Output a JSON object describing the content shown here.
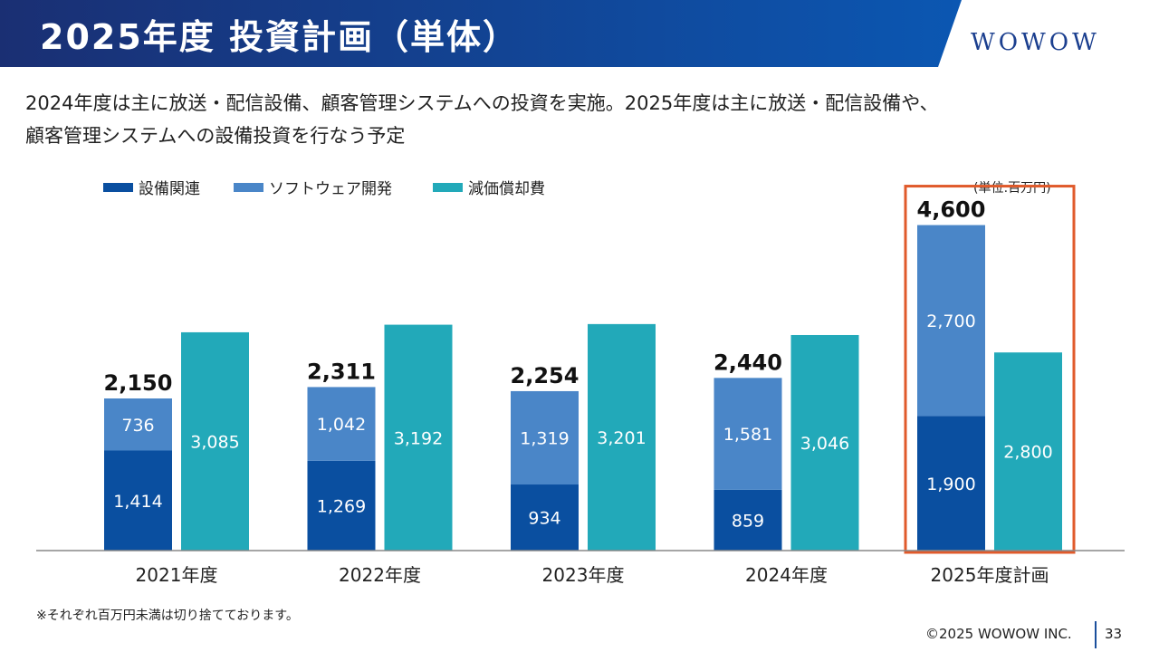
{
  "header": {
    "title": "2025年度 投資計画（単体）",
    "logo": "WOWOW",
    "colors": {
      "bar_left": "#1a2f73",
      "bar_right": "#0b57b2"
    }
  },
  "subtitle": {
    "line1": "2024年度は主に放送・配信設備、顧客管理システムへの投資を実施。2025年度は主に放送・配信設備や、",
    "line2": "顧客管理システムへの設備投資を行なう予定"
  },
  "unit": "(単位:百万円)",
  "chart_data": {
    "type": "bar",
    "stacked_series": [
      "設備関連",
      "ソフトウェア開発"
    ],
    "categories": [
      "2021年度",
      "2022年度",
      "2023年度",
      "2024年度",
      "2025年度計画"
    ],
    "series": [
      {
        "name": "設備関連",
        "color": "#0a4fa0",
        "values": [
          1414,
          1269,
          934,
          859,
          1900
        ],
        "labels": [
          "1,414",
          "1,269",
          "934",
          "859",
          "1,900"
        ]
      },
      {
        "name": "ソフトウェア開発",
        "color": "#4a86c8",
        "values": [
          736,
          1042,
          1319,
          1581,
          2700
        ],
        "labels": [
          "736",
          "1,042",
          "1,319",
          "1,581",
          "2,700"
        ]
      },
      {
        "name": "減価償却費",
        "color": "#22a9b9",
        "values": [
          3085,
          3192,
          3201,
          3046,
          2800
        ],
        "labels": [
          "3,085",
          "3,192",
          "3,201",
          "3,046",
          "2,800"
        ]
      }
    ],
    "totals": [
      2150,
      2311,
      2254,
      2440,
      4600
    ],
    "total_labels": [
      "2,150",
      "2,311",
      "2,254",
      "2,440",
      "4,600"
    ],
    "highlight_category_index": 4,
    "highlight_color": "#e05a2b",
    "grid": false,
    "legend_position": "top-left"
  },
  "footer": {
    "note": "※それぞれ百万円未満は切り捨てております。",
    "copyright": "©2025 WOWOW INC.",
    "page": "33"
  }
}
